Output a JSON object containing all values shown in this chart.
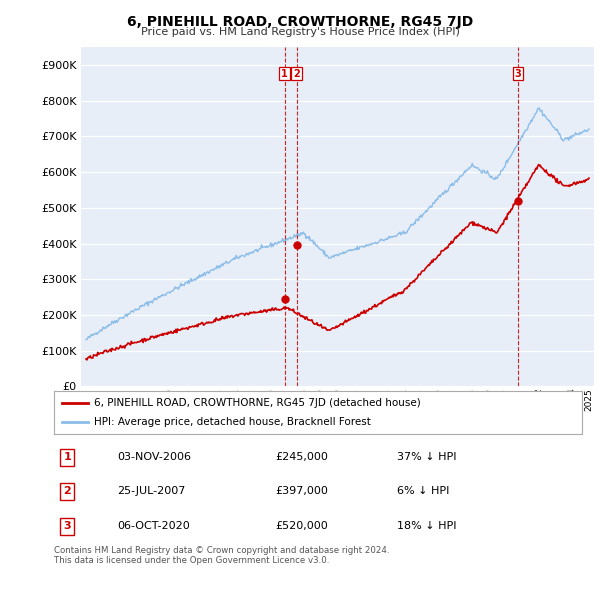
{
  "title": "6, PINEHILL ROAD, CROWTHORNE, RG45 7JD",
  "subtitle": "Price paid vs. HM Land Registry's House Price Index (HPI)",
  "ylim": [
    0,
    950000
  ],
  "yticks": [
    0,
    100000,
    200000,
    300000,
    400000,
    500000,
    600000,
    700000,
    800000,
    900000
  ],
  "ytick_labels": [
    "£0",
    "£100K",
    "£200K",
    "£300K",
    "£400K",
    "£500K",
    "£600K",
    "£700K",
    "£800K",
    "£900K"
  ],
  "hpi_color": "#8bbde8",
  "price_color": "#cc0000",
  "vline_color": "#cc0000",
  "background_color": "#e8eef8",
  "transactions": [
    {
      "date_num": 2006.84,
      "price": 245000,
      "label": "1",
      "date_str": "03-NOV-2006"
    },
    {
      "date_num": 2007.56,
      "price": 397000,
      "label": "2",
      "date_str": "25-JUL-2007"
    },
    {
      "date_num": 2020.76,
      "price": 520000,
      "label": "3",
      "date_str": "06-OCT-2020"
    }
  ],
  "legend_line1": "6, PINEHILL ROAD, CROWTHORNE, RG45 7JD (detached house)",
  "legend_line2": "HPI: Average price, detached house, Bracknell Forest",
  "footnote": "Contains HM Land Registry data © Crown copyright and database right 2024.\nThis data is licensed under the Open Government Licence v3.0.",
  "table_rows": [
    [
      "1",
      "03-NOV-2006",
      "£245,000",
      "37% ↓ HPI"
    ],
    [
      "2",
      "25-JUL-2007",
      "£397,000",
      "6% ↓ HPI"
    ],
    [
      "3",
      "06-OCT-2020",
      "£520,000",
      "18% ↓ HPI"
    ]
  ],
  "xmin": 1995,
  "xmax": 2025
}
